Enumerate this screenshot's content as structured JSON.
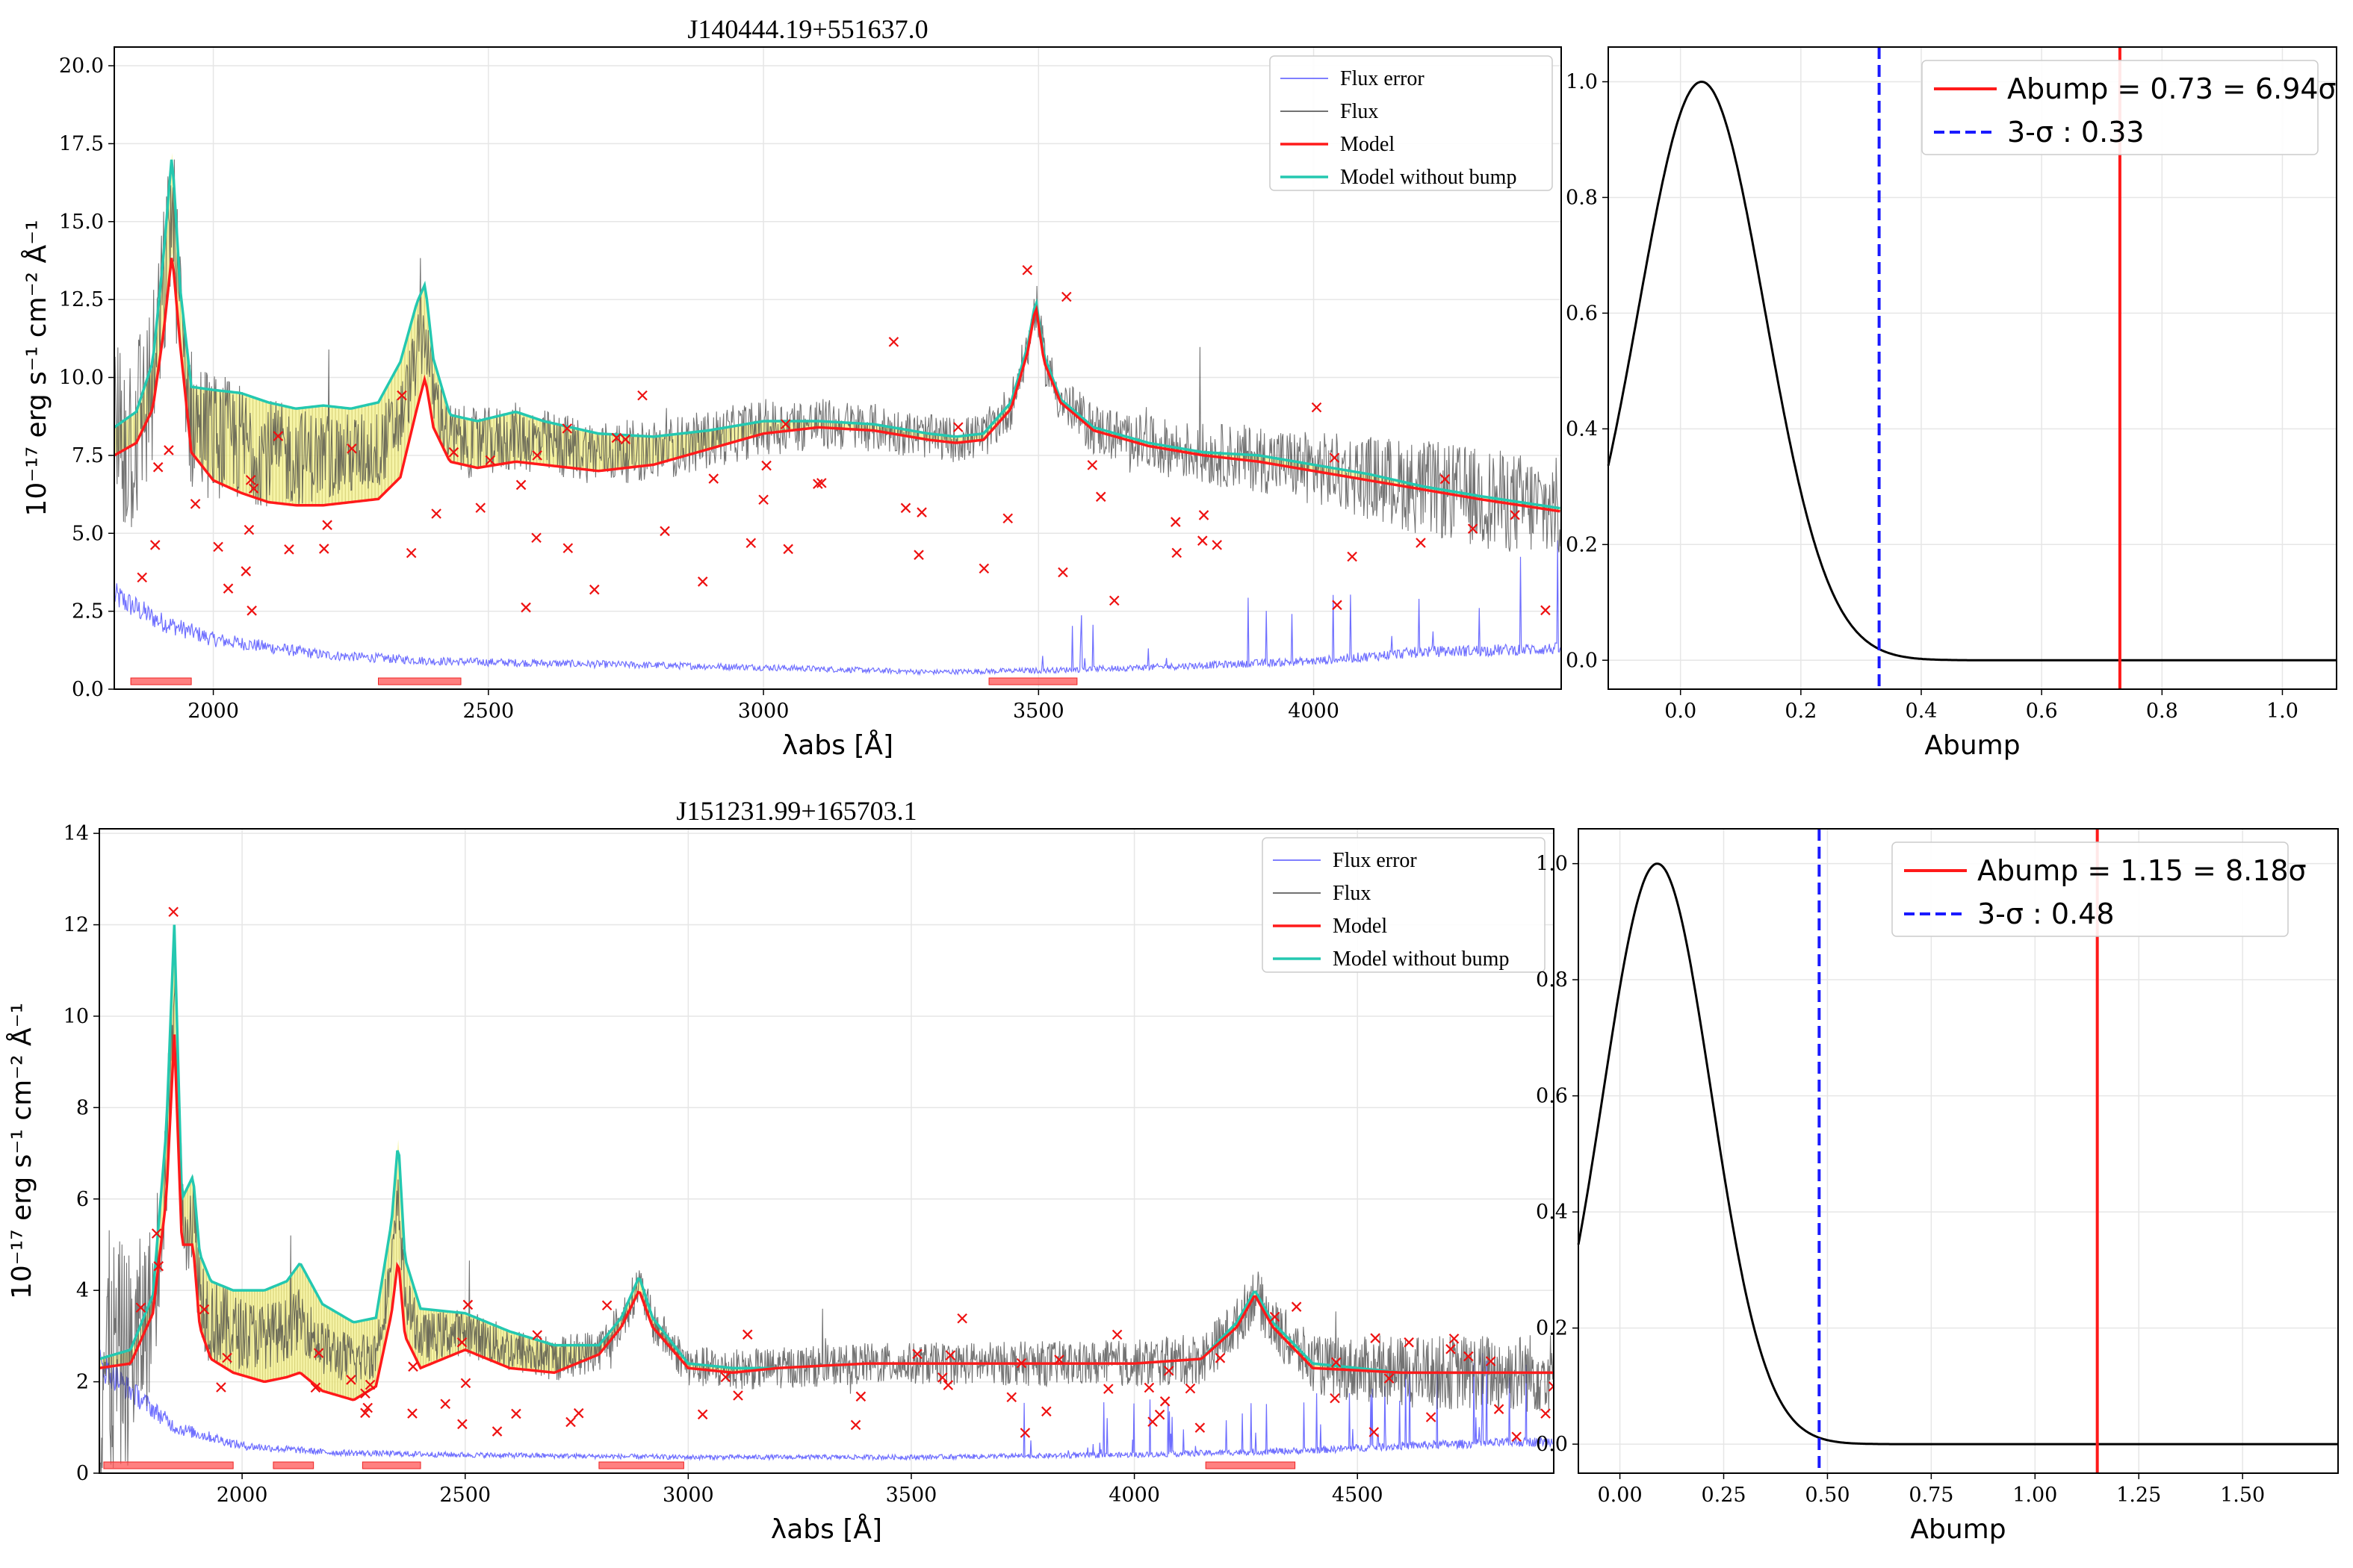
{
  "chart_data": [
    {
      "type": "line",
      "title": "J140444.19+551637.0",
      "xlabel": "λabs [Å]",
      "ylabel": "10⁻¹⁷ erg s⁻¹ cm⁻² Å⁻¹",
      "xlim": [
        1820,
        4450
      ],
      "ylim": [
        0,
        20.6
      ],
      "xticks": [
        2000,
        2500,
        3000,
        3500,
        4000
      ],
      "yticks": [
        "0.0",
        "2.5",
        "5.0",
        "7.5",
        "10.0",
        "12.5",
        "15.0",
        "17.5",
        "20.0"
      ],
      "legend": [
        "Flux error",
        "Flux",
        "Model",
        "Model without bump"
      ],
      "series": [
        {
          "name": "Model",
          "color": "#ff1a1a",
          "x": [
            1820,
            1860,
            1890,
            1910,
            1925,
            1940,
            1960,
            2000,
            2050,
            2100,
            2150,
            2200,
            2250,
            2300,
            2340,
            2370,
            2385,
            2400,
            2430,
            2480,
            2550,
            2600,
            2650,
            2700,
            2800,
            2900,
            3000,
            3050,
            3100,
            3200,
            3300,
            3350,
            3400,
            3450,
            3480,
            3495,
            3510,
            3540,
            3600,
            3700,
            3800,
            3900,
            4000,
            4100,
            4200,
            4300,
            4450
          ],
          "y": [
            7.5,
            7.9,
            9.0,
            11.5,
            14.0,
            11.0,
            7.6,
            6.7,
            6.3,
            6.0,
            5.9,
            5.9,
            6.0,
            6.1,
            6.8,
            9.0,
            10.0,
            8.4,
            7.3,
            7.1,
            7.3,
            7.2,
            7.1,
            7.0,
            7.2,
            7.7,
            8.2,
            8.3,
            8.4,
            8.3,
            8.0,
            7.9,
            8.0,
            9.0,
            10.8,
            12.3,
            10.5,
            9.2,
            8.3,
            7.8,
            7.5,
            7.3,
            7.0,
            6.7,
            6.4,
            6.1,
            5.7
          ]
        },
        {
          "name": "Model without bump",
          "color": "#24c8b0",
          "x": [
            1820,
            1860,
            1890,
            1910,
            1925,
            1940,
            1960,
            2000,
            2050,
            2100,
            2150,
            2200,
            2250,
            2300,
            2340,
            2370,
            2385,
            2400,
            2430,
            2480,
            2550,
            2600,
            2650,
            2700,
            2800,
            2900,
            3000,
            3050,
            3100,
            3200,
            3300,
            3350,
            3400,
            3450,
            3480,
            3495,
            3510,
            3540,
            3600,
            3700,
            3800,
            3900,
            4000,
            4100,
            4200,
            4300,
            4450
          ],
          "y": [
            8.4,
            8.9,
            10.5,
            14.0,
            17.2,
            12.8,
            9.7,
            9.6,
            9.5,
            9.2,
            9.0,
            9.1,
            9.0,
            9.2,
            10.5,
            12.4,
            13.0,
            10.6,
            8.8,
            8.6,
            8.9,
            8.6,
            8.4,
            8.2,
            8.1,
            8.3,
            8.6,
            8.6,
            8.6,
            8.5,
            8.2,
            8.1,
            8.2,
            9.2,
            11.0,
            12.5,
            10.7,
            9.3,
            8.4,
            7.9,
            7.6,
            7.5,
            7.2,
            6.9,
            6.5,
            6.2,
            5.8
          ]
        },
        {
          "name": "Flux error",
          "color": "#5555ff",
          "x": [
            1820,
            1900,
            2000,
            2200,
            2400,
            2700,
            3000,
            3300,
            3500,
            3700,
            4000,
            4200,
            4450
          ],
          "y": [
            3.0,
            2.2,
            1.6,
            1.1,
            0.9,
            0.8,
            0.7,
            0.55,
            0.6,
            0.7,
            0.9,
            1.2,
            1.3
          ]
        }
      ],
      "shaded_regions": [
        [
          1850,
          1960
        ],
        [
          2300,
          2450
        ],
        [
          3410,
          3570
        ]
      ],
      "outlier_marker": "×"
    },
    {
      "type": "line",
      "xlabel": "Abump",
      "xlim": [
        -0.12,
        1.09
      ],
      "ylim": [
        -0.05,
        1.06
      ],
      "xticks": [
        "0.0",
        "0.2",
        "0.4",
        "0.6",
        "0.8",
        "1.0"
      ],
      "yticks": [
        "0.0",
        "0.2",
        "0.4",
        "0.6",
        "0.8",
        "1.0"
      ],
      "gaussian": {
        "mu": 0.035,
        "sigma": 0.105
      },
      "vline_value": 0.73,
      "vline_threesigma": 0.33,
      "legend": [
        {
          "label": "Abump = 0.73 = 6.94σ",
          "color": "#ff1a1a",
          "style": "solid"
        },
        {
          "label": "3-σ : 0.33",
          "color": "#1a1aff",
          "style": "dashed"
        }
      ]
    },
    {
      "type": "line",
      "title": "J151231.99+165703.1",
      "xlabel": "λabs [Å]",
      "ylabel": "10⁻¹⁷ erg s⁻¹ cm⁻² Å⁻¹",
      "xlim": [
        1680,
        4940
      ],
      "ylim": [
        0,
        14.1
      ],
      "xticks": [
        2000,
        2500,
        3000,
        3500,
        4000,
        4500
      ],
      "yticks": [
        "0",
        "2",
        "4",
        "6",
        "8",
        "10",
        "12",
        "14"
      ],
      "legend": [
        "Flux error",
        "Flux",
        "Model",
        "Model without bump"
      ],
      "series": [
        {
          "name": "Model",
          "color": "#ff1a1a",
          "x": [
            1680,
            1750,
            1800,
            1830,
            1848,
            1865,
            1890,
            1905,
            1930,
            1980,
            2050,
            2100,
            2130,
            2180,
            2250,
            2300,
            2335,
            2350,
            2365,
            2400,
            2500,
            2600,
            2700,
            2800,
            2850,
            2890,
            2920,
            3000,
            3100,
            3200,
            3400,
            3600,
            3800,
            4000,
            4150,
            4230,
            4270,
            4310,
            4400,
            4600,
            4800,
            4940
          ],
          "y": [
            2.3,
            2.4,
            3.5,
            6.0,
            9.6,
            5.0,
            5.0,
            3.2,
            2.5,
            2.2,
            2.0,
            2.1,
            2.2,
            1.8,
            1.6,
            1.9,
            3.5,
            4.7,
            3.0,
            2.3,
            2.7,
            2.3,
            2.2,
            2.6,
            3.2,
            4.0,
            3.2,
            2.3,
            2.2,
            2.3,
            2.4,
            2.4,
            2.4,
            2.4,
            2.5,
            3.2,
            3.9,
            3.2,
            2.3,
            2.2,
            2.2,
            2.2
          ]
        },
        {
          "name": "Model without bump",
          "color": "#24c8b0",
          "x": [
            1680,
            1750,
            1800,
            1830,
            1848,
            1865,
            1890,
            1905,
            1930,
            1980,
            2050,
            2100,
            2130,
            2180,
            2250,
            2300,
            2335,
            2350,
            2365,
            2400,
            2500,
            2600,
            2700,
            2800,
            2850,
            2890,
            2920,
            3000,
            3100,
            3200,
            3400,
            3600,
            3800,
            4000,
            4150,
            4230,
            4270,
            4310,
            4400,
            4600,
            4800,
            4940
          ],
          "y": [
            2.5,
            2.7,
            3.9,
            7.5,
            12.0,
            6.0,
            6.5,
            4.8,
            4.2,
            4.0,
            4.0,
            4.2,
            4.6,
            3.7,
            3.3,
            3.4,
            5.5,
            7.3,
            4.7,
            3.6,
            3.5,
            3.1,
            2.8,
            2.8,
            3.4,
            4.3,
            3.4,
            2.4,
            2.3,
            2.3,
            2.4,
            2.4,
            2.4,
            2.4,
            2.5,
            3.3,
            4.0,
            3.3,
            2.4,
            2.2,
            2.2,
            2.2
          ]
        },
        {
          "name": "Flux error",
          "color": "#5555ff",
          "x": [
            1680,
            1750,
            1850,
            2000,
            2200,
            2500,
            3000,
            3500,
            4000,
            4400,
            4600,
            4940
          ],
          "y": [
            2.4,
            1.8,
            1.0,
            0.6,
            0.45,
            0.4,
            0.35,
            0.35,
            0.4,
            0.5,
            0.6,
            0.7
          ]
        }
      ],
      "shaded_regions": [
        [
          1690,
          1980
        ],
        [
          2070,
          2160
        ],
        [
          2270,
          2400
        ],
        [
          2800,
          2990
        ],
        [
          4160,
          4360
        ]
      ],
      "outlier_marker": "×"
    },
    {
      "type": "line",
      "xlabel": "Abump",
      "xlim": [
        -0.1,
        1.73
      ],
      "ylim": [
        -0.05,
        1.06
      ],
      "xticks": [
        "0.00",
        "0.25",
        "0.50",
        "0.75",
        "1.00",
        "1.25",
        "1.50"
      ],
      "yticks": [
        "0.0",
        "0.2",
        "0.4",
        "0.6",
        "0.8",
        "1.0"
      ],
      "gaussian": {
        "mu": 0.09,
        "sigma": 0.13
      },
      "vline_value": 1.15,
      "vline_threesigma": 0.48,
      "legend": [
        {
          "label": "Abump = 1.15 = 8.18σ",
          "color": "#ff1a1a",
          "style": "solid"
        },
        {
          "label": "3-σ : 0.48",
          "color": "#1a1aff",
          "style": "dashed"
        }
      ]
    }
  ]
}
